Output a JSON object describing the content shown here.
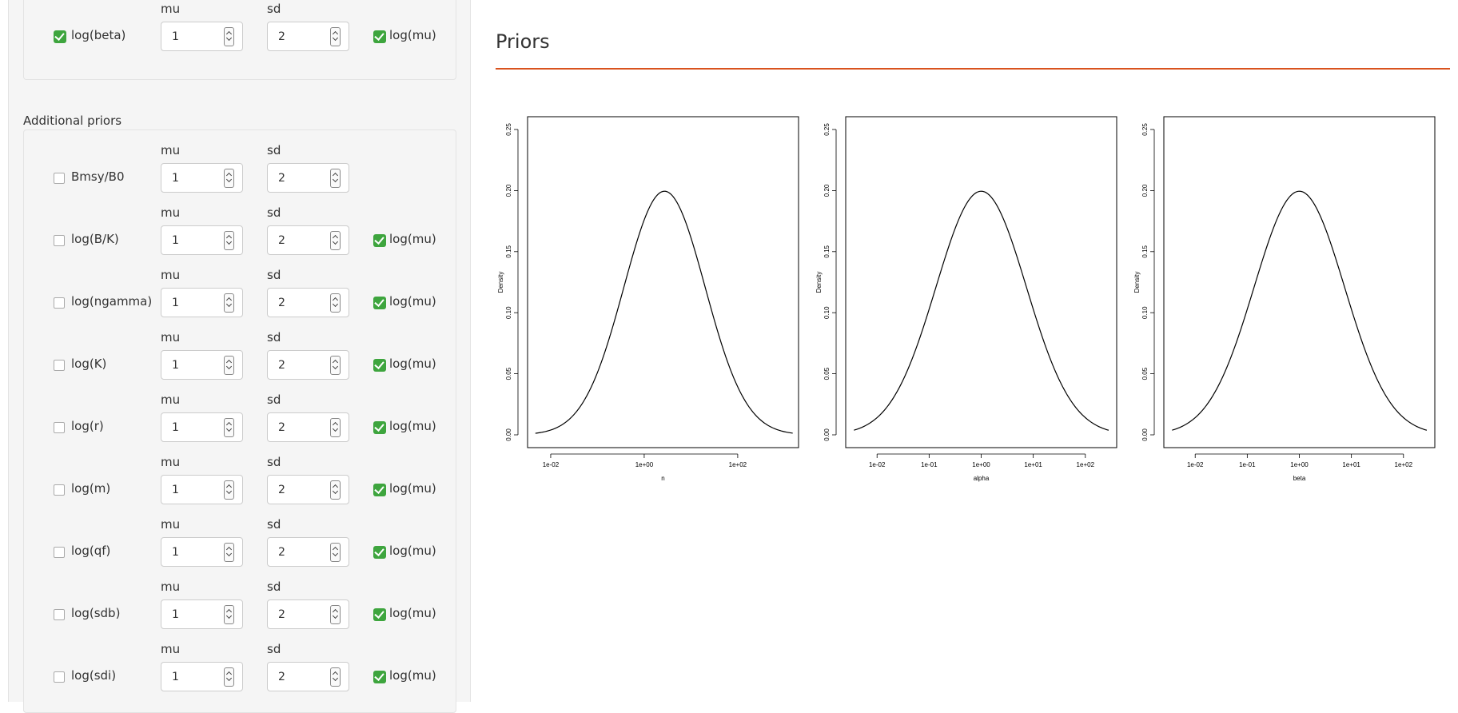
{
  "sidebar": {
    "top_well": {
      "row": {
        "label": "log(beta)",
        "checked": true,
        "mu_label": "mu",
        "sd_label": "sd",
        "mu": "1",
        "sd": "2",
        "logmu_label": "log(mu)",
        "logmu_checked": true
      }
    },
    "additional_priors": {
      "title": "Additional priors",
      "rows": [
        {
          "label": "Bmsy/B0",
          "checked": false,
          "mu_label": "mu",
          "sd_label": "sd",
          "mu": "1",
          "sd": "2",
          "logmu_label": "",
          "logmu_checked": false
        },
        {
          "label": "log(B/K)",
          "checked": false,
          "mu_label": "mu",
          "sd_label": "sd",
          "mu": "1",
          "sd": "2",
          "logmu_label": "log(mu)",
          "logmu_checked": true
        },
        {
          "label": "log(ngamma)",
          "checked": false,
          "mu_label": "mu",
          "sd_label": "sd",
          "mu": "1",
          "sd": "2",
          "logmu_label": "log(mu)",
          "logmu_checked": true
        },
        {
          "label": "log(K)",
          "checked": false,
          "mu_label": "mu",
          "sd_label": "sd",
          "mu": "1",
          "sd": "2",
          "logmu_label": "log(mu)",
          "logmu_checked": true
        },
        {
          "label": "log(r)",
          "checked": false,
          "mu_label": "mu",
          "sd_label": "sd",
          "mu": "1",
          "sd": "2",
          "logmu_label": "log(mu)",
          "logmu_checked": true
        },
        {
          "label": "log(m)",
          "checked": false,
          "mu_label": "mu",
          "sd_label": "sd",
          "mu": "1",
          "sd": "2",
          "logmu_label": "log(mu)",
          "logmu_checked": true
        },
        {
          "label": "log(qf)",
          "checked": false,
          "mu_label": "mu",
          "sd_label": "sd",
          "mu": "1",
          "sd": "2",
          "logmu_label": "log(mu)",
          "logmu_checked": true
        },
        {
          "label": "log(sdb)",
          "checked": false,
          "mu_label": "mu",
          "sd_label": "sd",
          "mu": "1",
          "sd": "2",
          "logmu_label": "log(mu)",
          "logmu_checked": true
        },
        {
          "label": "log(sdi)",
          "checked": false,
          "mu_label": "mu",
          "sd_label": "sd",
          "mu": "1",
          "sd": "2",
          "logmu_label": "log(mu)",
          "logmu_checked": true
        }
      ]
    }
  },
  "main": {
    "title": "Priors",
    "accent_color": "#d9531e"
  },
  "chart_data": [
    {
      "type": "line",
      "xlabel": "n",
      "ylabel": "Density",
      "xscale": "log10",
      "xlim": [
        0.0032,
        2000
      ],
      "ylim": [
        0,
        0.25
      ],
      "yticks": [
        "0.00",
        "0.05",
        "0.10",
        "0.15",
        "0.20",
        "0.25"
      ],
      "xticks": [
        {
          "v": 0.01,
          "label": "1e-02"
        },
        {
          "v": 1,
          "label": "1e+00"
        },
        {
          "v": 100,
          "label": "1e+02"
        }
      ],
      "series": [
        {
          "lognormal_mean_log": 1,
          "lognormal_sd_log": 2,
          "x_from": 0.0047,
          "x_to": 1500
        }
      ]
    },
    {
      "type": "line",
      "xlabel": "alpha",
      "ylabel": "Density",
      "xscale": "log10",
      "xlim": [
        0.0025,
        400
      ],
      "ylim": [
        0,
        0.25
      ],
      "yticks": [
        "0.00",
        "0.05",
        "0.10",
        "0.15",
        "0.20",
        "0.25"
      ],
      "xticks": [
        {
          "v": 0.01,
          "label": "1e-02"
        },
        {
          "v": 0.1,
          "label": "1e-01"
        },
        {
          "v": 1,
          "label": "1e+00"
        },
        {
          "v": 10,
          "label": "1e+01"
        },
        {
          "v": 100,
          "label": "1e+02"
        }
      ],
      "series": [
        {
          "lognormal_mean_log": 0,
          "lognormal_sd_log": 2,
          "x_from": 0.0036,
          "x_to": 280
        }
      ]
    },
    {
      "type": "line",
      "xlabel": "beta",
      "ylabel": "Density",
      "xscale": "log10",
      "xlim": [
        0.0025,
        400
      ],
      "ylim": [
        0,
        0.25
      ],
      "yticks": [
        "0.00",
        "0.05",
        "0.10",
        "0.15",
        "0.20",
        "0.25"
      ],
      "xticks": [
        {
          "v": 0.01,
          "label": "1e-02"
        },
        {
          "v": 0.1,
          "label": "1e-01"
        },
        {
          "v": 1,
          "label": "1e+00"
        },
        {
          "v": 10,
          "label": "1e+01"
        },
        {
          "v": 100,
          "label": "1e+02"
        }
      ],
      "series": [
        {
          "lognormal_mean_log": 0,
          "lognormal_sd_log": 2,
          "x_from": 0.0036,
          "x_to": 280
        }
      ]
    }
  ]
}
